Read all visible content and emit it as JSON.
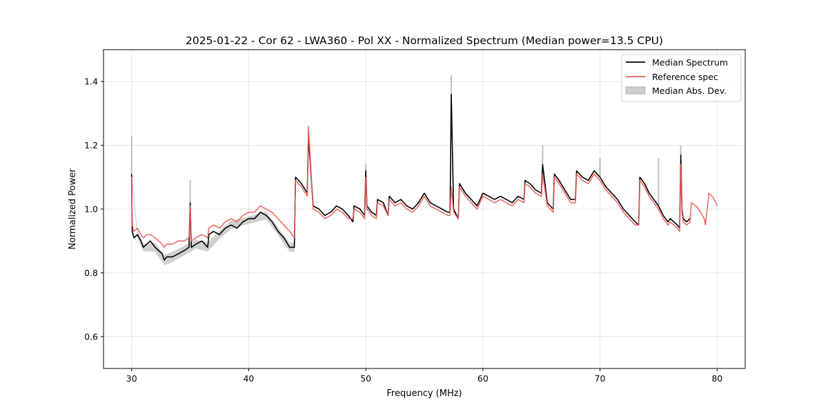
{
  "chart_data": {
    "type": "line",
    "title": "2025-01-22 - Cor 62 - LWA360 - Pol XX - Normalized Spectrum (Median power=13.5 CPU)",
    "xlabel": "Frequency (MHz)",
    "ylabel": "Normalized Power",
    "xlim": [
      27.6,
      82.4
    ],
    "ylim": [
      0.5,
      1.5
    ],
    "xticks": [
      30,
      40,
      50,
      60,
      70,
      80
    ],
    "yticks": [
      0.6,
      0.8,
      1.0,
      1.2,
      1.4
    ],
    "xtick_labels": [
      "30",
      "40",
      "50",
      "60",
      "70",
      "80"
    ],
    "ytick_labels": [
      "0.6",
      "0.8",
      "1.0",
      "1.2",
      "1.4"
    ],
    "grid": true,
    "legend_position": "top-right",
    "legend": [
      "Median Spectrum",
      "Reference spec",
      "Median Abs. Dev."
    ],
    "colors": {
      "median": "#000000",
      "reference": "#f05a5a",
      "mad": "#bdbdbd",
      "overlap": "#8b0000",
      "grid": "#e6e6e6"
    },
    "series": [
      {
        "name": "Median Spectrum",
        "x": [
          30.0,
          30.05,
          30.2,
          30.5,
          30.8,
          31.0,
          31.3,
          31.6,
          32.0,
          32.3,
          32.6,
          32.8,
          33.0,
          33.5,
          34.0,
          34.5,
          34.9,
          35.0,
          35.1,
          35.5,
          36.0,
          36.5,
          36.6,
          37.0,
          37.5,
          38.0,
          38.5,
          39.0,
          39.5,
          40.0,
          40.5,
          41.0,
          41.5,
          42.0,
          42.5,
          43.0,
          43.5,
          43.9,
          44.0,
          44.5,
          45.0,
          45.1,
          45.5,
          46.0,
          46.5,
          47.0,
          47.5,
          48.0,
          48.5,
          48.9,
          49.0,
          49.5,
          49.9,
          50.0,
          50.1,
          50.5,
          50.9,
          51.0,
          51.5,
          51.9,
          52.0,
          52.5,
          53.0,
          53.5,
          54.0,
          54.5,
          55.0,
          55.5,
          56.0,
          56.5,
          57.0,
          57.2,
          57.3,
          57.5,
          57.9,
          58.0,
          58.5,
          59.0,
          59.5,
          60.0,
          60.5,
          61.0,
          61.5,
          62.0,
          62.5,
          63.0,
          63.5,
          63.6,
          64.0,
          64.5,
          65.0,
          65.1,
          65.5,
          66.0,
          66.1,
          66.5,
          67.0,
          67.5,
          67.9,
          68.0,
          68.5,
          69.0,
          69.5,
          70.0,
          70.5,
          71.0,
          71.5,
          72.0,
          72.5,
          73.0,
          73.3,
          73.4,
          73.8,
          74.2,
          74.6,
          75.0,
          75.4,
          75.8,
          76.0,
          76.3,
          76.6,
          76.8,
          76.9,
          77.0,
          77.1,
          77.4,
          77.7
        ],
        "values": [
          1.11,
          0.93,
          0.91,
          0.92,
          0.9,
          0.88,
          0.89,
          0.9,
          0.88,
          0.87,
          0.86,
          0.84,
          0.85,
          0.85,
          0.86,
          0.87,
          0.88,
          1.02,
          0.88,
          0.89,
          0.9,
          0.88,
          0.92,
          0.93,
          0.92,
          0.94,
          0.95,
          0.94,
          0.96,
          0.97,
          0.97,
          0.99,
          0.98,
          0.96,
          0.93,
          0.91,
          0.88,
          0.88,
          1.1,
          1.08,
          1.05,
          1.23,
          1.01,
          1.0,
          0.98,
          0.99,
          1.01,
          1.0,
          0.98,
          0.96,
          1.01,
          1.0,
          0.98,
          1.12,
          1.01,
          0.99,
          0.98,
          1.03,
          1.02,
          0.98,
          1.04,
          1.02,
          1.03,
          1.01,
          1.0,
          1.02,
          1.05,
          1.02,
          1.01,
          1.0,
          0.99,
          0.99,
          1.36,
          1.0,
          0.97,
          1.08,
          1.05,
          1.03,
          1.01,
          1.05,
          1.04,
          1.03,
          1.04,
          1.03,
          1.02,
          1.04,
          1.03,
          1.09,
          1.08,
          1.06,
          1.05,
          1.14,
          1.02,
          1.0,
          1.11,
          1.09,
          1.06,
          1.03,
          1.03,
          1.12,
          1.1,
          1.09,
          1.12,
          1.1,
          1.07,
          1.05,
          1.03,
          1.0,
          0.98,
          0.96,
          0.95,
          1.1,
          1.08,
          1.05,
          1.03,
          1.01,
          0.98,
          0.96,
          0.97,
          0.96,
          0.95,
          0.94,
          1.17,
          1.0,
          0.97,
          0.96,
          0.97
        ]
      },
      {
        "name": "Reference spec",
        "x": [
          30.0,
          30.05,
          30.2,
          30.5,
          30.8,
          31.0,
          31.3,
          31.6,
          32.0,
          32.3,
          32.6,
          32.8,
          33.0,
          33.5,
          34.0,
          34.5,
          34.9,
          35.0,
          35.1,
          35.5,
          36.0,
          36.5,
          36.6,
          37.0,
          37.5,
          38.0,
          38.5,
          39.0,
          39.5,
          40.0,
          40.5,
          41.0,
          41.5,
          42.0,
          42.5,
          43.0,
          43.5,
          43.9,
          44.0,
          44.5,
          45.0,
          45.1,
          45.5,
          46.0,
          46.5,
          47.0,
          47.5,
          48.0,
          48.5,
          48.9,
          49.0,
          49.5,
          49.9,
          50.0,
          50.1,
          50.5,
          50.9,
          51.0,
          51.5,
          51.9,
          52.0,
          52.5,
          53.0,
          53.5,
          54.0,
          54.5,
          55.0,
          55.5,
          56.0,
          56.5,
          57.0,
          57.2,
          57.3,
          57.5,
          57.9,
          58.0,
          58.5,
          59.0,
          59.5,
          60.0,
          60.5,
          61.0,
          61.5,
          62.0,
          62.5,
          63.0,
          63.5,
          63.6,
          64.0,
          64.5,
          65.0,
          65.1,
          65.5,
          66.0,
          66.1,
          66.5,
          67.0,
          67.5,
          67.9,
          68.0,
          68.5,
          69.0,
          69.5,
          70.0,
          70.5,
          71.0,
          71.5,
          72.0,
          72.5,
          73.0,
          73.3,
          73.4,
          73.8,
          74.2,
          74.6,
          75.0,
          75.4,
          75.8,
          76.0,
          76.3,
          76.6,
          76.8,
          76.9,
          77.0,
          77.1,
          77.4,
          77.7,
          77.8,
          78.2,
          78.6,
          78.9,
          79.0,
          79.3,
          79.6,
          79.9,
          80.0
        ],
        "values": [
          1.1,
          0.95,
          0.93,
          0.94,
          0.92,
          0.91,
          0.92,
          0.92,
          0.91,
          0.9,
          0.89,
          0.88,
          0.89,
          0.89,
          0.9,
          0.9,
          0.91,
          1.01,
          0.9,
          0.91,
          0.92,
          0.91,
          0.94,
          0.95,
          0.94,
          0.96,
          0.97,
          0.96,
          0.98,
          0.99,
          0.99,
          1.01,
          1.0,
          0.99,
          0.97,
          0.95,
          0.93,
          0.91,
          1.09,
          1.07,
          1.04,
          1.26,
          1.0,
          0.99,
          0.97,
          0.98,
          1.0,
          0.99,
          0.97,
          0.97,
          1.0,
          0.99,
          0.97,
          1.1,
          1.0,
          0.98,
          0.97,
          1.02,
          1.01,
          0.98,
          1.03,
          1.01,
          1.02,
          1.0,
          0.99,
          1.01,
          1.04,
          1.01,
          1.0,
          0.99,
          0.98,
          0.98,
          1.07,
          0.99,
          0.97,
          1.07,
          1.04,
          1.02,
          1.0,
          1.04,
          1.03,
          1.02,
          1.03,
          1.02,
          1.01,
          1.03,
          1.02,
          1.08,
          1.07,
          1.05,
          1.04,
          1.11,
          1.01,
          0.99,
          1.1,
          1.08,
          1.05,
          1.02,
          1.02,
          1.11,
          1.09,
          1.08,
          1.11,
          1.09,
          1.06,
          1.04,
          1.02,
          0.99,
          0.97,
          0.95,
          0.95,
          1.09,
          1.07,
          1.04,
          1.02,
          1.0,
          0.97,
          0.95,
          0.96,
          0.95,
          0.94,
          0.93,
          1.14,
          0.99,
          0.96,
          0.95,
          0.96,
          1.02,
          1.01,
          0.99,
          0.97,
          0.95,
          1.05,
          1.04,
          1.02,
          1.01
        ]
      }
    ],
    "mad_band": {
      "x": [
        30.0,
        30.5,
        31.0,
        32.0,
        32.8,
        33.5,
        34.5,
        35.5,
        36.5,
        37.5,
        38.5,
        39.5,
        40.5,
        41.5,
        42.5,
        43.5,
        43.9
      ],
      "width": [
        0.012,
        0.012,
        0.012,
        0.014,
        0.016,
        0.016,
        0.015,
        0.014,
        0.014,
        0.013,
        0.013,
        0.012,
        0.012,
        0.012,
        0.012,
        0.014,
        0.016
      ]
    },
    "spike_extents": [
      {
        "x": 30.0,
        "y": 1.23
      },
      {
        "x": 35.0,
        "y": 1.09
      },
      {
        "x": 45.1,
        "y": 1.24
      },
      {
        "x": 50.0,
        "y": 1.14
      },
      {
        "x": 57.3,
        "y": 1.42
      },
      {
        "x": 65.1,
        "y": 1.2
      },
      {
        "x": 70.0,
        "y": 1.16
      },
      {
        "x": 75.0,
        "y": 1.16
      },
      {
        "x": 76.9,
        "y": 1.2
      }
    ]
  }
}
